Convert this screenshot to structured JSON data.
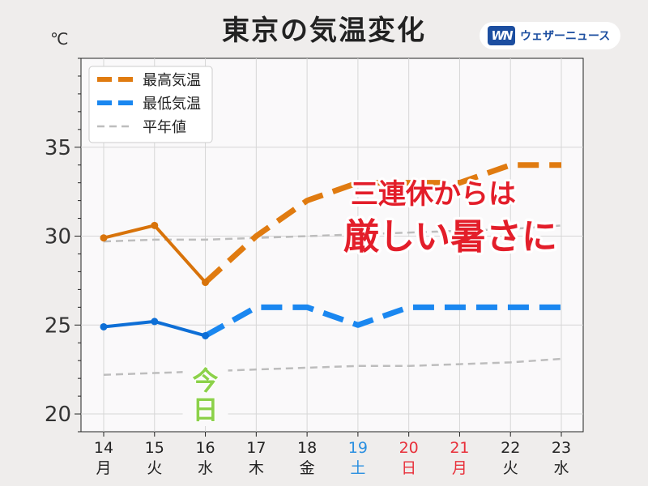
{
  "header": {
    "title": "東京の気温変化",
    "unit": "℃",
    "brand_mark": "WN",
    "brand_name": "ウェザーニュース"
  },
  "chart_data": {
    "type": "line",
    "title": "東京の気温変化",
    "ylabel": "℃",
    "ylim": [
      19,
      40
    ],
    "yticks": [
      20,
      25,
      30,
      35
    ],
    "grid": true,
    "legend_position": "top-left",
    "categories": [
      "14",
      "15",
      "16",
      "17",
      "18",
      "19",
      "20",
      "21",
      "22",
      "23"
    ],
    "weekdays": [
      "月",
      "火",
      "水",
      "木",
      "金",
      "土",
      "日",
      "月",
      "火",
      "水"
    ],
    "category_colors": [
      "#222222",
      "#222222",
      "#222222",
      "#222222",
      "#222222",
      "#2a8fe0",
      "#e8303a",
      "#e8303a",
      "#222222",
      "#222222"
    ],
    "today_index": 2,
    "today_label": "今日",
    "series": [
      {
        "name": "最高気温",
        "color": "#e07b10",
        "actual_color": "#d8730a",
        "values": [
          29.9,
          30.6,
          27.4,
          30,
          32,
          33,
          33,
          33,
          34,
          34
        ]
      },
      {
        "name": "最低気温",
        "color": "#1a87f0",
        "actual_color": "#0e6fd6",
        "values": [
          24.9,
          25.2,
          24.4,
          26,
          26,
          25,
          26,
          26,
          26,
          26
        ]
      },
      {
        "name": "平年値",
        "color": "#bdbdbd",
        "values_high": [
          29.7,
          29.8,
          29.8,
          29.9,
          30.0,
          30.1,
          30.2,
          30.3,
          30.4,
          30.6
        ],
        "values_low": [
          22.2,
          22.3,
          22.4,
          22.5,
          22.6,
          22.7,
          22.7,
          22.8,
          22.9,
          23.1
        ]
      }
    ],
    "annotation": {
      "line1": "三連休からは",
      "line2": "厳しい暑さに",
      "color": "#e31e2a"
    }
  }
}
